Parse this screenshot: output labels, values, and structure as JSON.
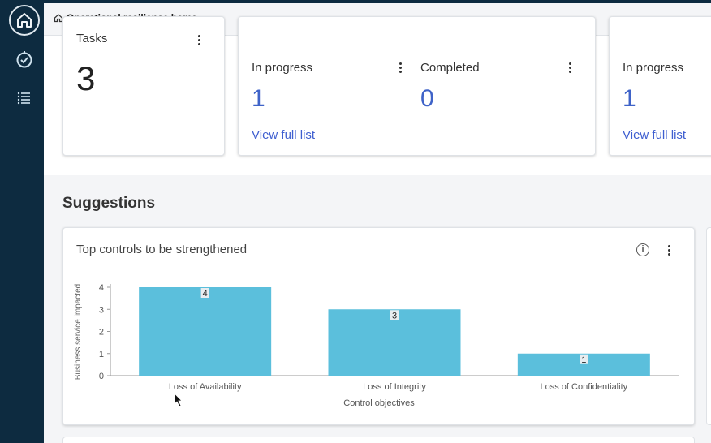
{
  "breadcrumb": {
    "title": "Operational resilience home"
  },
  "cards": {
    "tasks": {
      "title": "Tasks",
      "value": "3"
    },
    "group1": {
      "in_progress_label": "In progress",
      "in_progress_value": "1",
      "completed_label": "Completed",
      "completed_value": "0",
      "link": "View full list"
    },
    "group2": {
      "in_progress_label": "In progress",
      "in_progress_value": "1",
      "link": "View full list"
    }
  },
  "suggestions": {
    "heading": "Suggestions"
  },
  "icons": {
    "info": "i"
  },
  "chart_data": {
    "type": "bar",
    "title": "Top controls to be strengthened",
    "xlabel": "Control objectives",
    "ylabel": "Business service impacted",
    "categories": [
      "Loss of Availability",
      "Loss of Integrity",
      "Loss of Confidentiality"
    ],
    "values": [
      4,
      3,
      1
    ],
    "ylim": [
      0,
      4
    ],
    "yticks": [
      "0",
      "1",
      "2",
      "3",
      "4"
    ],
    "data_labels": [
      "4",
      "3",
      "1"
    ],
    "bar_color": "#5bbfdc",
    "grid": false
  }
}
